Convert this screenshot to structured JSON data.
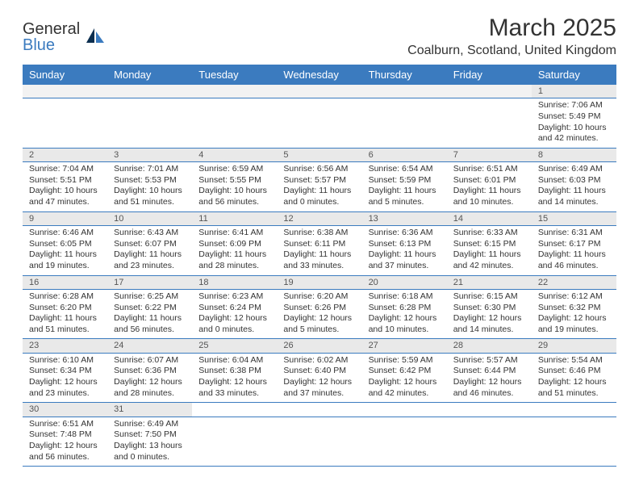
{
  "logo": {
    "general": "General",
    "blue": "Blue"
  },
  "title": "March 2025",
  "location": "Coalburn, Scotland, United Kingdom",
  "colors": {
    "header_bg": "#3b7bbf",
    "header_fg": "#ffffff",
    "daynum_bg": "#e9e9e9",
    "line": "#3b7bbf"
  },
  "day_headers": [
    "Sunday",
    "Monday",
    "Tuesday",
    "Wednesday",
    "Thursday",
    "Friday",
    "Saturday"
  ],
  "weeks": [
    [
      null,
      null,
      null,
      null,
      null,
      null,
      {
        "n": "1",
        "sr": "Sunrise: 7:06 AM",
        "ss": "Sunset: 5:49 PM",
        "dl": "Daylight: 10 hours and 42 minutes."
      }
    ],
    [
      {
        "n": "2",
        "sr": "Sunrise: 7:04 AM",
        "ss": "Sunset: 5:51 PM",
        "dl": "Daylight: 10 hours and 47 minutes."
      },
      {
        "n": "3",
        "sr": "Sunrise: 7:01 AM",
        "ss": "Sunset: 5:53 PM",
        "dl": "Daylight: 10 hours and 51 minutes."
      },
      {
        "n": "4",
        "sr": "Sunrise: 6:59 AM",
        "ss": "Sunset: 5:55 PM",
        "dl": "Daylight: 10 hours and 56 minutes."
      },
      {
        "n": "5",
        "sr": "Sunrise: 6:56 AM",
        "ss": "Sunset: 5:57 PM",
        "dl": "Daylight: 11 hours and 0 minutes."
      },
      {
        "n": "6",
        "sr": "Sunrise: 6:54 AM",
        "ss": "Sunset: 5:59 PM",
        "dl": "Daylight: 11 hours and 5 minutes."
      },
      {
        "n": "7",
        "sr": "Sunrise: 6:51 AM",
        "ss": "Sunset: 6:01 PM",
        "dl": "Daylight: 11 hours and 10 minutes."
      },
      {
        "n": "8",
        "sr": "Sunrise: 6:49 AM",
        "ss": "Sunset: 6:03 PM",
        "dl": "Daylight: 11 hours and 14 minutes."
      }
    ],
    [
      {
        "n": "9",
        "sr": "Sunrise: 6:46 AM",
        "ss": "Sunset: 6:05 PM",
        "dl": "Daylight: 11 hours and 19 minutes."
      },
      {
        "n": "10",
        "sr": "Sunrise: 6:43 AM",
        "ss": "Sunset: 6:07 PM",
        "dl": "Daylight: 11 hours and 23 minutes."
      },
      {
        "n": "11",
        "sr": "Sunrise: 6:41 AM",
        "ss": "Sunset: 6:09 PM",
        "dl": "Daylight: 11 hours and 28 minutes."
      },
      {
        "n": "12",
        "sr": "Sunrise: 6:38 AM",
        "ss": "Sunset: 6:11 PM",
        "dl": "Daylight: 11 hours and 33 minutes."
      },
      {
        "n": "13",
        "sr": "Sunrise: 6:36 AM",
        "ss": "Sunset: 6:13 PM",
        "dl": "Daylight: 11 hours and 37 minutes."
      },
      {
        "n": "14",
        "sr": "Sunrise: 6:33 AM",
        "ss": "Sunset: 6:15 PM",
        "dl": "Daylight: 11 hours and 42 minutes."
      },
      {
        "n": "15",
        "sr": "Sunrise: 6:31 AM",
        "ss": "Sunset: 6:17 PM",
        "dl": "Daylight: 11 hours and 46 minutes."
      }
    ],
    [
      {
        "n": "16",
        "sr": "Sunrise: 6:28 AM",
        "ss": "Sunset: 6:20 PM",
        "dl": "Daylight: 11 hours and 51 minutes."
      },
      {
        "n": "17",
        "sr": "Sunrise: 6:25 AM",
        "ss": "Sunset: 6:22 PM",
        "dl": "Daylight: 11 hours and 56 minutes."
      },
      {
        "n": "18",
        "sr": "Sunrise: 6:23 AM",
        "ss": "Sunset: 6:24 PM",
        "dl": "Daylight: 12 hours and 0 minutes."
      },
      {
        "n": "19",
        "sr": "Sunrise: 6:20 AM",
        "ss": "Sunset: 6:26 PM",
        "dl": "Daylight: 12 hours and 5 minutes."
      },
      {
        "n": "20",
        "sr": "Sunrise: 6:18 AM",
        "ss": "Sunset: 6:28 PM",
        "dl": "Daylight: 12 hours and 10 minutes."
      },
      {
        "n": "21",
        "sr": "Sunrise: 6:15 AM",
        "ss": "Sunset: 6:30 PM",
        "dl": "Daylight: 12 hours and 14 minutes."
      },
      {
        "n": "22",
        "sr": "Sunrise: 6:12 AM",
        "ss": "Sunset: 6:32 PM",
        "dl": "Daylight: 12 hours and 19 minutes."
      }
    ],
    [
      {
        "n": "23",
        "sr": "Sunrise: 6:10 AM",
        "ss": "Sunset: 6:34 PM",
        "dl": "Daylight: 12 hours and 23 minutes."
      },
      {
        "n": "24",
        "sr": "Sunrise: 6:07 AM",
        "ss": "Sunset: 6:36 PM",
        "dl": "Daylight: 12 hours and 28 minutes."
      },
      {
        "n": "25",
        "sr": "Sunrise: 6:04 AM",
        "ss": "Sunset: 6:38 PM",
        "dl": "Daylight: 12 hours and 33 minutes."
      },
      {
        "n": "26",
        "sr": "Sunrise: 6:02 AM",
        "ss": "Sunset: 6:40 PM",
        "dl": "Daylight: 12 hours and 37 minutes."
      },
      {
        "n": "27",
        "sr": "Sunrise: 5:59 AM",
        "ss": "Sunset: 6:42 PM",
        "dl": "Daylight: 12 hours and 42 minutes."
      },
      {
        "n": "28",
        "sr": "Sunrise: 5:57 AM",
        "ss": "Sunset: 6:44 PM",
        "dl": "Daylight: 12 hours and 46 minutes."
      },
      {
        "n": "29",
        "sr": "Sunrise: 5:54 AM",
        "ss": "Sunset: 6:46 PM",
        "dl": "Daylight: 12 hours and 51 minutes."
      }
    ],
    [
      {
        "n": "30",
        "sr": "Sunrise: 6:51 AM",
        "ss": "Sunset: 7:48 PM",
        "dl": "Daylight: 12 hours and 56 minutes."
      },
      {
        "n": "31",
        "sr": "Sunrise: 6:49 AM",
        "ss": "Sunset: 7:50 PM",
        "dl": "Daylight: 13 hours and 0 minutes."
      },
      null,
      null,
      null,
      null,
      null
    ]
  ]
}
